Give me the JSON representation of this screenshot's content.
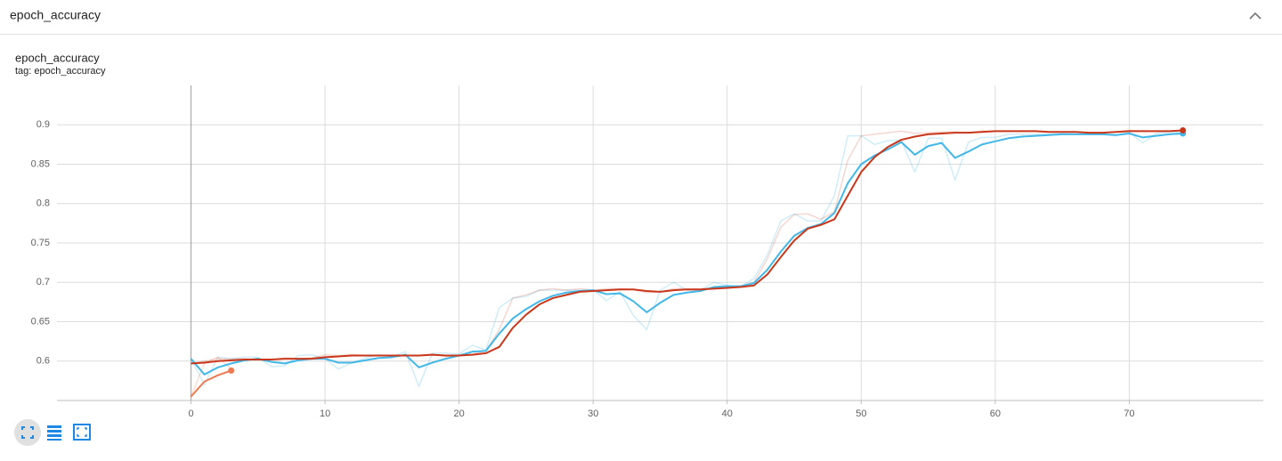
{
  "header": {
    "title": "epoch_accuracy"
  },
  "chart_data": {
    "type": "line",
    "title": "epoch_accuracy",
    "subtitle": "tag: epoch_accuracy",
    "x": [
      0,
      1,
      2,
      3,
      4,
      5,
      6,
      7,
      8,
      9,
      10,
      11,
      12,
      13,
      14,
      15,
      16,
      17,
      18,
      19,
      20,
      21,
      22,
      23,
      24,
      25,
      26,
      27,
      28,
      29,
      30,
      31,
      32,
      33,
      34,
      35,
      36,
      37,
      38,
      39,
      40,
      41,
      42,
      43,
      44,
      45,
      46,
      47,
      48,
      49,
      50,
      51,
      52,
      53,
      54,
      55,
      56,
      57,
      58,
      59,
      60,
      61,
      62,
      63,
      64,
      65,
      66,
      67,
      68,
      69,
      70,
      71,
      72,
      73,
      74
    ],
    "xlim": [
      -10,
      80
    ],
    "xticks": [
      0,
      10,
      20,
      30,
      40,
      50,
      60,
      70
    ],
    "ylim": [
      0.55,
      0.95
    ],
    "yticks": [
      0.6,
      0.65,
      0.7,
      0.75,
      0.8,
      0.85,
      0.9
    ],
    "grid": true,
    "series": [
      {
        "color": "#42b7e8",
        "opacity": 0.25,
        "end_marker": false,
        "values": [
          0.603,
          0.57,
          0.605,
          0.603,
          0.605,
          0.605,
          0.593,
          0.594,
          0.607,
          0.608,
          0.603,
          0.59,
          0.598,
          0.604,
          0.608,
          0.606,
          0.612,
          0.568,
          0.61,
          0.61,
          0.609,
          0.62,
          0.614,
          0.668,
          0.68,
          0.682,
          0.69,
          0.69,
          0.69,
          0.69,
          0.69,
          0.677,
          0.688,
          0.658,
          0.64,
          0.69,
          0.7,
          0.69,
          0.69,
          0.7,
          0.696,
          0.695,
          0.705,
          0.735,
          0.778,
          0.787,
          0.778,
          0.778,
          0.81,
          0.886,
          0.886,
          0.875,
          0.88,
          0.88,
          0.84,
          0.883,
          0.883,
          0.83,
          0.878,
          0.884,
          0.884,
          0.888,
          0.888,
          0.888,
          0.888,
          0.889,
          0.888,
          0.888,
          0.888,
          0.886,
          0.891,
          0.877,
          0.889,
          0.891,
          0.89
        ]
      },
      {
        "color": "#c9371b",
        "opacity": 0.2,
        "end_marker": false,
        "values": [
          0.597,
          0.6,
          0.603,
          0.603,
          0.603,
          0.602,
          0.602,
          0.604,
          0.603,
          0.604,
          0.608,
          0.607,
          0.608,
          0.607,
          0.607,
          0.607,
          0.607,
          0.607,
          0.609,
          0.606,
          0.607,
          0.609,
          0.613,
          0.64,
          0.68,
          0.684,
          0.69,
          0.692,
          0.69,
          0.692,
          0.69,
          0.692,
          0.692,
          0.691,
          0.687,
          0.688,
          0.692,
          0.692,
          0.692,
          0.693,
          0.694,
          0.695,
          0.7,
          0.73,
          0.77,
          0.786,
          0.787,
          0.78,
          0.79,
          0.855,
          0.886,
          0.888,
          0.89,
          0.892,
          0.889,
          0.89,
          0.891,
          0.891,
          0.89,
          0.892,
          0.892,
          0.892,
          0.892,
          0.892,
          0.891,
          0.891,
          0.891,
          0.89,
          0.89,
          0.891,
          0.893,
          0.892,
          0.892,
          0.892,
          0.893
        ]
      },
      {
        "color": "#f07b52",
        "opacity": 0.25,
        "end_marker": false,
        "x": [
          0,
          1,
          2,
          3
        ],
        "values": [
          0.555,
          0.597,
          0.605,
          0.59
        ]
      },
      {
        "color": "#42b7e8",
        "opacity": 1,
        "end_marker": true,
        "values": [
          0.603,
          0.583,
          0.592,
          0.597,
          0.601,
          0.603,
          0.599,
          0.597,
          0.601,
          0.603,
          0.603,
          0.598,
          0.598,
          0.601,
          0.604,
          0.605,
          0.608,
          0.592,
          0.598,
          0.603,
          0.607,
          0.612,
          0.613,
          0.635,
          0.654,
          0.666,
          0.676,
          0.683,
          0.687,
          0.689,
          0.69,
          0.685,
          0.686,
          0.676,
          0.662,
          0.674,
          0.684,
          0.687,
          0.689,
          0.694,
          0.695,
          0.695,
          0.699,
          0.716,
          0.739,
          0.759,
          0.769,
          0.774,
          0.788,
          0.826,
          0.85,
          0.861,
          0.869,
          0.878,
          0.862,
          0.873,
          0.877,
          0.858,
          0.866,
          0.875,
          0.879,
          0.883,
          0.885,
          0.886,
          0.887,
          0.888,
          0.888,
          0.888,
          0.888,
          0.887,
          0.889,
          0.884,
          0.886,
          0.888,
          0.889
        ]
      },
      {
        "color": "#c9371b",
        "opacity": 1,
        "end_marker": true,
        "values": [
          0.597,
          0.598,
          0.6,
          0.601,
          0.602,
          0.602,
          0.602,
          0.603,
          0.603,
          0.603,
          0.605,
          0.606,
          0.607,
          0.607,
          0.607,
          0.607,
          0.607,
          0.607,
          0.608,
          0.607,
          0.607,
          0.608,
          0.61,
          0.618,
          0.642,
          0.659,
          0.672,
          0.68,
          0.684,
          0.688,
          0.689,
          0.69,
          0.691,
          0.691,
          0.689,
          0.688,
          0.69,
          0.691,
          0.691,
          0.692,
          0.693,
          0.694,
          0.696,
          0.71,
          0.732,
          0.753,
          0.768,
          0.773,
          0.78,
          0.81,
          0.84,
          0.859,
          0.872,
          0.881,
          0.885,
          0.888,
          0.889,
          0.89,
          0.89,
          0.891,
          0.892,
          0.892,
          0.892,
          0.892,
          0.891,
          0.891,
          0.891,
          0.89,
          0.89,
          0.891,
          0.892,
          0.892,
          0.892,
          0.892,
          0.893
        ]
      },
      {
        "color": "#f07b52",
        "opacity": 1,
        "end_marker": true,
        "x": [
          0,
          1,
          2,
          3
        ],
        "values": [
          0.555,
          0.574,
          0.582,
          0.588
        ]
      }
    ]
  }
}
